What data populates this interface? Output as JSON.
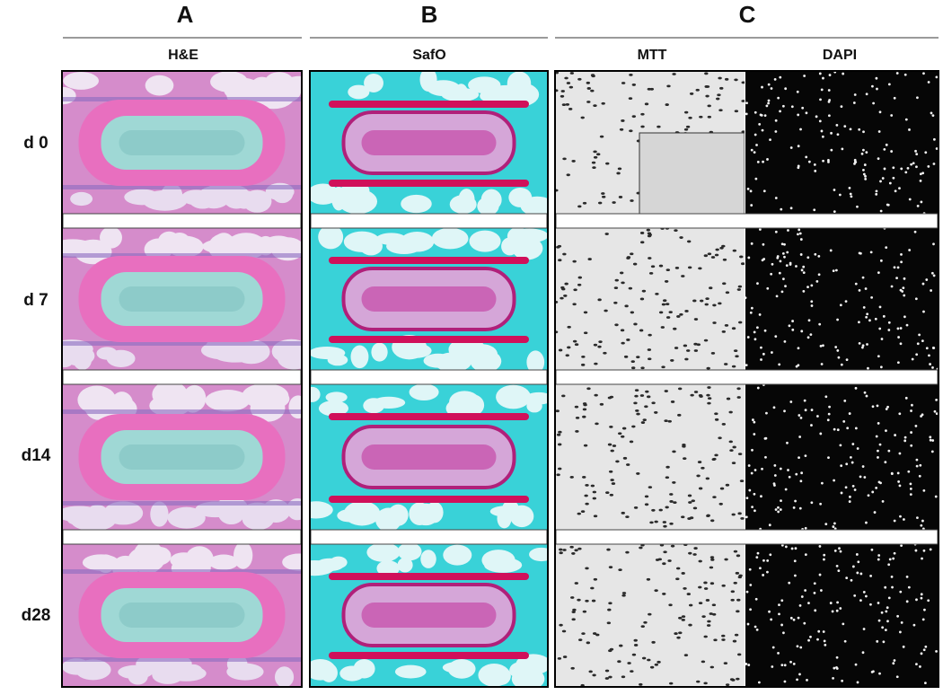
{
  "columns": [
    {
      "letter": "A",
      "stains": [
        "H&E"
      ]
    },
    {
      "letter": "B",
      "stains": [
        "SafO"
      ]
    },
    {
      "letter": "C",
      "stains": [
        "MTT",
        "DAPI"
      ]
    }
  ],
  "rows": [
    "d 0",
    "d 7",
    "d14",
    "d28"
  ]
}
